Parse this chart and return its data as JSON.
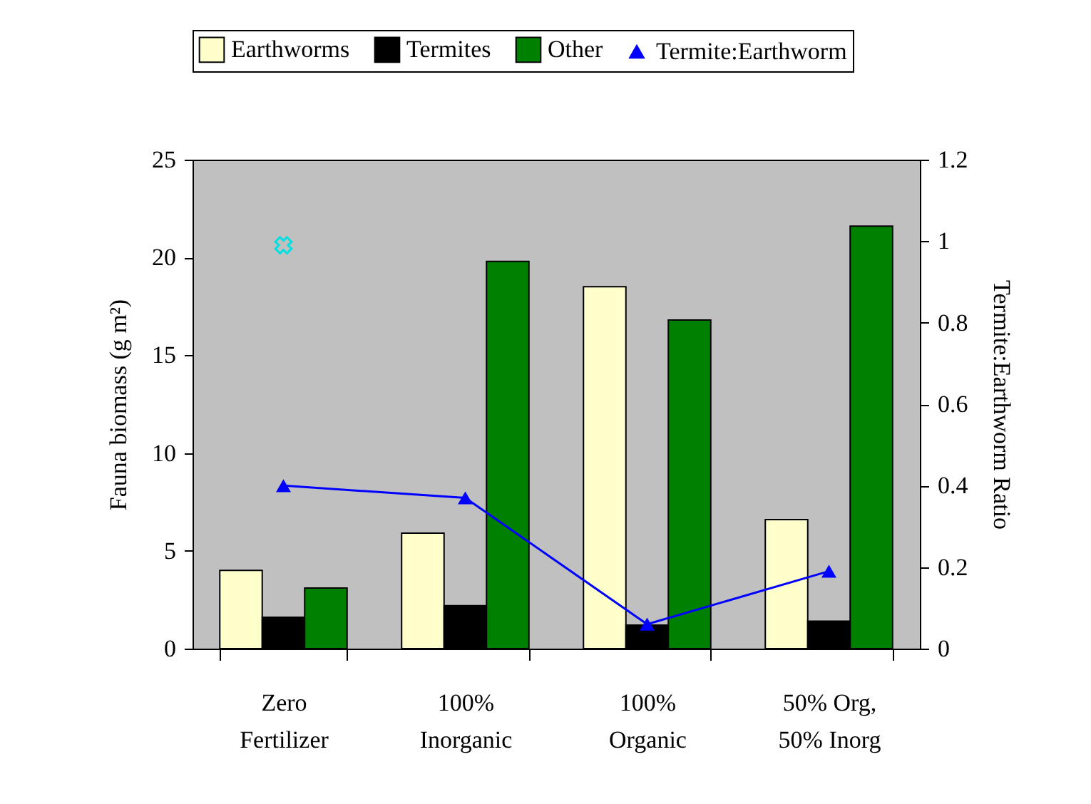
{
  "chart_data": {
    "type": "bar",
    "categories": [
      "Zero\nFertilizer",
      "100%\nInorganic",
      "100%\nOrganic",
      "50% Org,\n50% Inorg"
    ],
    "ylabel": "Fauna biomass (g m²)",
    "y2label": "Termite:Earthworm Ratio",
    "ylim": [
      0,
      25
    ],
    "yticks": [
      0,
      5,
      10,
      15,
      20,
      25
    ],
    "y2lim": [
      0,
      1.2
    ],
    "y2ticks": [
      0,
      0.2,
      0.4,
      0.6,
      0.8,
      1,
      1.2
    ],
    "grid": false,
    "legend": "top",
    "series": [
      {
        "name": "Earthworms",
        "color": "#ffffcc",
        "values": [
          4,
          5.9,
          18.5,
          6.6
        ]
      },
      {
        "name": "Termites",
        "color": "#000000",
        "values": [
          1.6,
          2.2,
          1.2,
          1.4
        ]
      },
      {
        "name": "Other",
        "color": "#008000",
        "values": [
          3.1,
          19.8,
          16.8,
          21.6
        ]
      },
      {
        "name": "Termite:Earthworm",
        "type": "line",
        "axis": "y2",
        "marker": "triangle",
        "color": "#0000ff",
        "values": [
          0.4,
          0.37,
          0.06,
          0.19
        ]
      },
      {
        "type": "scatter",
        "axis": "y2",
        "marker": "cross",
        "color": "#00e0e0",
        "values": [
          0.99,
          null,
          null,
          null
        ]
      }
    ]
  }
}
